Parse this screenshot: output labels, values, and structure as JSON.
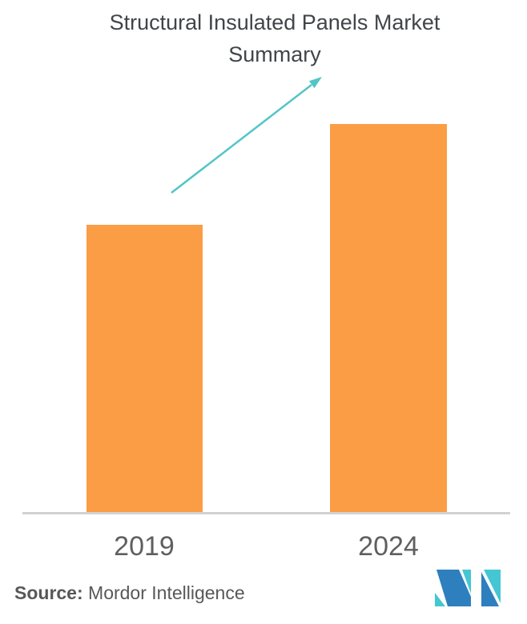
{
  "header": {
    "title": "Structural Insulated Panels Market Summary"
  },
  "chart_data": {
    "type": "bar",
    "title": "Structural Insulated Panels Market Summary",
    "categories": [
      "2019",
      "2024"
    ],
    "values": [
      74,
      100
    ],
    "xlabel": "",
    "ylabel": "",
    "ylim": [
      0,
      108
    ],
    "y_axis_shown": false,
    "gridlines": false,
    "legend": "none",
    "bar_color": "#FB9D45",
    "annotations": [
      {
        "type": "growth-arrow",
        "description": "upward trend arrow between bars",
        "color": "#52C5C7"
      }
    ]
  },
  "footer": {
    "source_label": "Source:",
    "source_value": " Mordor Intelligence",
    "logo_name": "mordor-intelligence-logo"
  },
  "colors": {
    "background": "#FFFFFF",
    "bar": "#FB9D45",
    "arrow": "#52C5C7",
    "axis_line": "#D2D2D2",
    "title_text": "#414549",
    "axis_label_text": "#5E5F61",
    "source_text": "#57585A",
    "logo_blue": "#2E7FBE",
    "logo_teal": "#45C6D3"
  }
}
